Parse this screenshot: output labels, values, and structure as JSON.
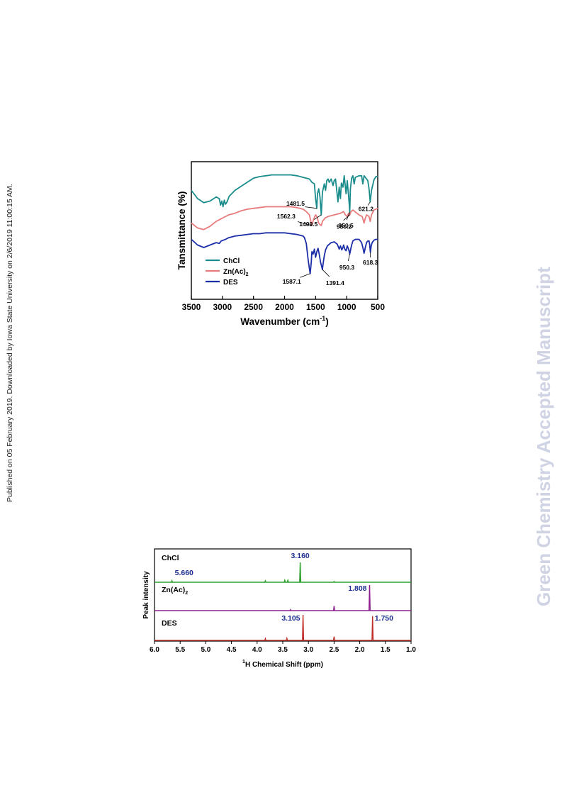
{
  "side_note": "Published on 05 February 2019. Downloaded by Iowa State University on 2/6/2019 11:00:15 AM.",
  "watermark": "Green Chemistry Accepted Manuscript",
  "chart_data": [
    {
      "type": "line",
      "xlabel": "Wavenumber (cm",
      "xlabel_sup": "-1",
      "xlabel_close": ")",
      "ylabel": "Tansmittance (%)",
      "xlim": [
        3500,
        500
      ],
      "x_reversed": true,
      "xticks": [
        3500,
        3000,
        2500,
        2000,
        1500,
        1000,
        500
      ],
      "yticks_shown": false,
      "legend": {
        "placement": "lower-left",
        "entries": [
          {
            "name": "ChCl",
            "color": "#1a8c8c"
          },
          {
            "name": "Zn(Ac)",
            "name_sub": "2",
            "color": "#e87c7c"
          },
          {
            "name": "DES",
            "color": "#1c2ea8"
          }
        ]
      },
      "series": [
        {
          "name": "ChCl",
          "color": "#1a8c8c",
          "points": [
            [
              3500,
              0.7
            ],
            [
              3400,
              0.6
            ],
            [
              3300,
              0.55
            ],
            [
              3200,
              0.57
            ],
            [
              3100,
              0.62
            ],
            [
              3050,
              0.6
            ],
            [
              3030,
              0.52
            ],
            [
              3010,
              0.57
            ],
            [
              2990,
              0.5
            ],
            [
              2970,
              0.58
            ],
            [
              2950,
              0.53
            ],
            [
              2925,
              0.56
            ],
            [
              2890,
              0.63
            ],
            [
              2850,
              0.66
            ],
            [
              2800,
              0.7
            ],
            [
              2700,
              0.75
            ],
            [
              2600,
              0.8
            ],
            [
              2500,
              0.85
            ],
            [
              2400,
              0.87
            ],
            [
              2300,
              0.88
            ],
            [
              2200,
              0.89
            ],
            [
              2100,
              0.89
            ],
            [
              2000,
              0.89
            ],
            [
              1900,
              0.89
            ],
            [
              1800,
              0.88
            ],
            [
              1700,
              0.86
            ],
            [
              1650,
              0.85
            ],
            [
              1600,
              0.84
            ],
            [
              1560,
              0.8
            ],
            [
              1520,
              0.78
            ],
            [
              1500,
              0.6
            ],
            [
              1481.5,
              0.48
            ],
            [
              1470,
              0.66
            ],
            [
              1450,
              0.72
            ],
            [
              1430,
              0.62
            ],
            [
              1409.5,
              0.4
            ],
            [
              1390,
              0.68
            ],
            [
              1360,
              0.78
            ],
            [
              1340,
              0.7
            ],
            [
              1320,
              0.82
            ],
            [
              1300,
              0.84
            ],
            [
              1280,
              0.8
            ],
            [
              1250,
              0.84
            ],
            [
              1220,
              0.76
            ],
            [
              1200,
              0.82
            ],
            [
              1180,
              0.84
            ],
            [
              1140,
              0.56
            ],
            [
              1120,
              0.74
            ],
            [
              1100,
              0.6
            ],
            [
              1085,
              0.79
            ],
            [
              1060,
              0.74
            ],
            [
              1040,
              0.88
            ],
            [
              1010,
              0.66
            ],
            [
              990,
              0.82
            ],
            [
              955,
              0.5
            ],
            [
              950.2,
              0.43
            ],
            [
              940,
              0.72
            ],
            [
              920,
              0.85
            ],
            [
              900,
              0.88
            ],
            [
              880,
              0.78
            ],
            [
              860,
              0.86
            ],
            [
              800,
              0.88
            ],
            [
              760,
              0.88
            ],
            [
              740,
              0.78
            ],
            [
              720,
              0.88
            ],
            [
              700,
              0.86
            ],
            [
              660,
              0.82
            ],
            [
              640,
              0.72
            ],
            [
              621.2,
              0.56
            ],
            [
              600,
              0.7
            ],
            [
              560,
              0.83
            ],
            [
              530,
              0.87
            ],
            [
              500,
              0.87
            ]
          ]
        },
        {
          "name": "Zn(Ac)2",
          "color": "#e87c7c",
          "points": [
            [
              3500,
              0.3
            ],
            [
              3400,
              0.24
            ],
            [
              3300,
              0.22
            ],
            [
              3200,
              0.26
            ],
            [
              3100,
              0.32
            ],
            [
              3000,
              0.36
            ],
            [
              2900,
              0.4
            ],
            [
              2800,
              0.42
            ],
            [
              2700,
              0.45
            ],
            [
              2600,
              0.47
            ],
            [
              2500,
              0.48
            ],
            [
              2400,
              0.49
            ],
            [
              2300,
              0.5
            ],
            [
              2200,
              0.5
            ],
            [
              2100,
              0.5
            ],
            [
              2000,
              0.5
            ],
            [
              1900,
              0.5
            ],
            [
              1800,
              0.49
            ],
            [
              1700,
              0.47
            ],
            [
              1650,
              0.44
            ],
            [
              1600,
              0.4
            ],
            [
              1562.3,
              0.27
            ],
            [
              1530,
              0.35
            ],
            [
              1500,
              0.4
            ],
            [
              1480,
              0.38
            ],
            [
              1450,
              0.3
            ],
            [
              1430,
              0.28
            ],
            [
              1409.5,
              0.27
            ],
            [
              1390,
              0.32
            ],
            [
              1350,
              0.36
            ],
            [
              1300,
              0.38
            ],
            [
              1200,
              0.4
            ],
            [
              1100,
              0.42
            ],
            [
              1050,
              0.44
            ],
            [
              1020,
              0.4
            ],
            [
              990,
              0.38
            ],
            [
              970,
              0.42
            ],
            [
              950.2,
              0.4
            ],
            [
              930,
              0.44
            ],
            [
              900,
              0.46
            ],
            [
              850,
              0.43
            ],
            [
              800,
              0.4
            ],
            [
              750,
              0.38
            ],
            [
              720,
              0.3
            ],
            [
              700,
              0.36
            ],
            [
              680,
              0.4
            ],
            [
              640,
              0.38
            ],
            [
              621,
              0.32
            ],
            [
              600,
              0.4
            ],
            [
              560,
              0.46
            ],
            [
              500,
              0.48
            ]
          ]
        },
        {
          "name": "DES",
          "color": "#1c2ea8",
          "points": [
            [
              3500,
              0.1
            ],
            [
              3400,
              0.03
            ],
            [
              3300,
              0.0
            ],
            [
              3200,
              0.03
            ],
            [
              3100,
              0.06
            ],
            [
              3050,
              0.05
            ],
            [
              3020,
              0.08
            ],
            [
              2950,
              0.1
            ],
            [
              2900,
              0.12
            ],
            [
              2800,
              0.14
            ],
            [
              2700,
              0.15
            ],
            [
              2600,
              0.16
            ],
            [
              2500,
              0.17
            ],
            [
              2400,
              0.17
            ],
            [
              2300,
              0.18
            ],
            [
              2200,
              0.18
            ],
            [
              2100,
              0.18
            ],
            [
              2000,
              0.18
            ],
            [
              1900,
              0.17
            ],
            [
              1800,
              0.16
            ],
            [
              1700,
              0.14
            ],
            [
              1680,
              0.12
            ],
            [
              1650,
              0.05
            ],
            [
              1620,
              -0.15
            ],
            [
              1600,
              -0.26
            ],
            [
              1587.1,
              -0.32
            ],
            [
              1570,
              -0.18
            ],
            [
              1560,
              -0.05
            ],
            [
              1540,
              -0.08
            ],
            [
              1520,
              -0.02
            ],
            [
              1500,
              -0.12
            ],
            [
              1480,
              -0.05
            ],
            [
              1460,
              -0.01
            ],
            [
              1440,
              -0.09
            ],
            [
              1420,
              -0.18
            ],
            [
              1400,
              -0.24
            ],
            [
              1391.4,
              -0.27
            ],
            [
              1380,
              -0.2
            ],
            [
              1360,
              -0.1
            ],
            [
              1340,
              -0.03
            ],
            [
              1310,
              0.02
            ],
            [
              1280,
              0.04
            ],
            [
              1250,
              0.06
            ],
            [
              1200,
              0.07
            ],
            [
              1150,
              0.04
            ],
            [
              1120,
              -0.02
            ],
            [
              1100,
              0.02
            ],
            [
              1080,
              -0.03
            ],
            [
              1060,
              0.0
            ],
            [
              1050,
              0.03
            ],
            [
              1030,
              -0.02
            ],
            [
              1010,
              -0.04
            ],
            [
              990,
              0.02
            ],
            [
              965,
              -0.03
            ],
            [
              950.3,
              -0.08
            ],
            [
              935,
              -0.02
            ],
            [
              920,
              0.03
            ],
            [
              900,
              0.08
            ],
            [
              860,
              0.1
            ],
            [
              820,
              0.1
            ],
            [
              800,
              0.1
            ],
            [
              780,
              0.08
            ],
            [
              760,
              0.06
            ],
            [
              740,
              0.0
            ],
            [
              720,
              -0.07
            ],
            [
              700,
              0.0
            ],
            [
              680,
              0.06
            ],
            [
              660,
              0.08
            ],
            [
              640,
              0.08
            ],
            [
              630,
              0.04
            ],
            [
              618.3,
              -0.06
            ],
            [
              605,
              0.02
            ],
            [
              590,
              0.06
            ],
            [
              560,
              0.09
            ],
            [
              530,
              0.1
            ],
            [
              500,
              0.1
            ]
          ]
        }
      ],
      "annotations": [
        {
          "text": "1481.5",
          "x": 1481.5,
          "y": 0.48
        },
        {
          "text": "1409.5",
          "x": 1409.5,
          "y": 0.4
        },
        {
          "text": "621.2",
          "x": 621.2,
          "y": 0.56
        },
        {
          "text": "950.2",
          "x": 950.2,
          "y": 0.43
        },
        {
          "text": "950.5",
          "x": 950.5,
          "y": 0.4
        },
        {
          "text": "1562.3",
          "x": 1562.3,
          "y": 0.27
        },
        {
          "text": "950.3",
          "x": 950.3,
          "y": -0.08
        },
        {
          "text": "618.3",
          "x": 618.3,
          "y": -0.06
        },
        {
          "text": "1587.1",
          "x": 1587.1,
          "y": -0.32
        },
        {
          "text": "1391.4",
          "x": 1391.4,
          "y": -0.27
        }
      ]
    },
    {
      "type": "line",
      "xlabel": "H Chemical Shift (ppm)",
      "xlabel_sup": "1",
      "ylabel": "Peak intensity",
      "xlim": [
        6.0,
        1.0
      ],
      "x_reversed": true,
      "xticks": [
        "6.0",
        "5.5",
        "5.0",
        "4.5",
        "4.0",
        "3.5",
        "3.0",
        "2.5",
        "2.0",
        "1.5",
        "1.0"
      ],
      "panels": [
        {
          "label": "ChCl",
          "color": "#2ca02c",
          "peaks": [
            [
              5.66,
              0.08
            ],
            [
              3.84,
              0.07
            ],
            [
              3.46,
              0.1
            ],
            [
              3.4,
              0.1
            ],
            [
              3.16,
              1.0
            ],
            [
              2.5,
              0.04
            ]
          ],
          "labels": [
            {
              "text": "5.660",
              "x": 5.66
            },
            {
              "text": "3.160",
              "x": 3.16
            }
          ]
        },
        {
          "label": "Zn(Ac)",
          "label_sub": "2",
          "color": "#8e1f8e",
          "peaks": [
            [
              3.35,
              0.04
            ],
            [
              2.5,
              0.18
            ],
            [
              1.808,
              1.0
            ]
          ],
          "labels": [
            {
              "text": "1.808",
              "x": 1.808
            }
          ]
        },
        {
          "label": "DES",
          "color": "#c0302a",
          "peaks": [
            [
              3.84,
              0.07
            ],
            [
              3.42,
              0.08
            ],
            [
              3.105,
              1.0
            ],
            [
              2.5,
              0.15
            ],
            [
              1.75,
              0.95
            ]
          ],
          "labels": [
            {
              "text": "3.105",
              "x": 3.105
            },
            {
              "text": "1.750",
              "x": 1.75
            }
          ]
        }
      ]
    }
  ]
}
